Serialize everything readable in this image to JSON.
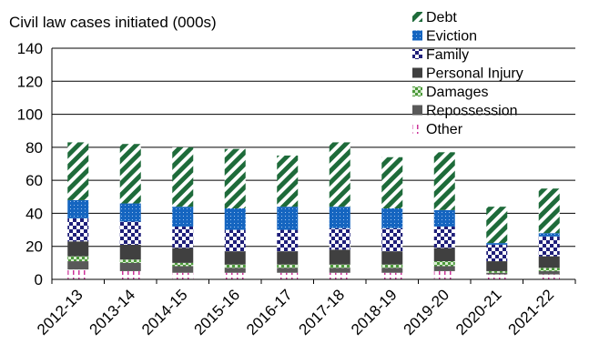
{
  "chart_data": {
    "type": "bar",
    "stacked": true,
    "title": "Civil law cases initiated (000s)",
    "xlabel": "",
    "ylabel": "",
    "ylim": [
      0,
      140
    ],
    "yticks": [
      0,
      20,
      40,
      60,
      80,
      100,
      120,
      140
    ],
    "grid": true,
    "legend_position": "top-right",
    "categories": [
      "2012-13",
      "2013-14",
      "2014-15",
      "2015-16",
      "2016-17",
      "2017-18",
      "2018-19",
      "2019-20",
      "2020-21",
      "2021-22"
    ],
    "series": [
      {
        "name": "Other",
        "color": "#cc3399",
        "pattern": "dashes",
        "values": [
          6,
          5,
          4,
          4,
          4,
          4,
          4,
          5,
          3,
          3
        ]
      },
      {
        "name": "Repossession",
        "color": "#595959",
        "pattern": "solid",
        "values": [
          5,
          5,
          4,
          3,
          3,
          3,
          3,
          3,
          1,
          2
        ]
      },
      {
        "name": "Damages",
        "color": "#4c9a3a",
        "pattern": "checker",
        "values": [
          3,
          2,
          2,
          2,
          2,
          2,
          2,
          3,
          1,
          2
        ]
      },
      {
        "name": "Personal Injury",
        "color": "#404040",
        "pattern": "solid",
        "values": [
          9,
          9,
          9,
          8,
          8,
          9,
          8,
          8,
          6,
          7
        ]
      },
      {
        "name": "Family",
        "color": "#1f1f7a",
        "pattern": "checker",
        "values": [
          14,
          14,
          13,
          13,
          13,
          13,
          14,
          13,
          10,
          12
        ]
      },
      {
        "name": "Eviction",
        "color": "#1565c0",
        "pattern": "dots",
        "values": [
          11,
          11,
          12,
          13,
          14,
          13,
          12,
          10,
          1,
          2
        ]
      },
      {
        "name": "Debt",
        "color": "#1e6b3a",
        "pattern": "diagonal",
        "values": [
          35,
          36,
          36,
          36,
          31,
          39,
          31,
          35,
          22,
          27
        ]
      }
    ]
  }
}
